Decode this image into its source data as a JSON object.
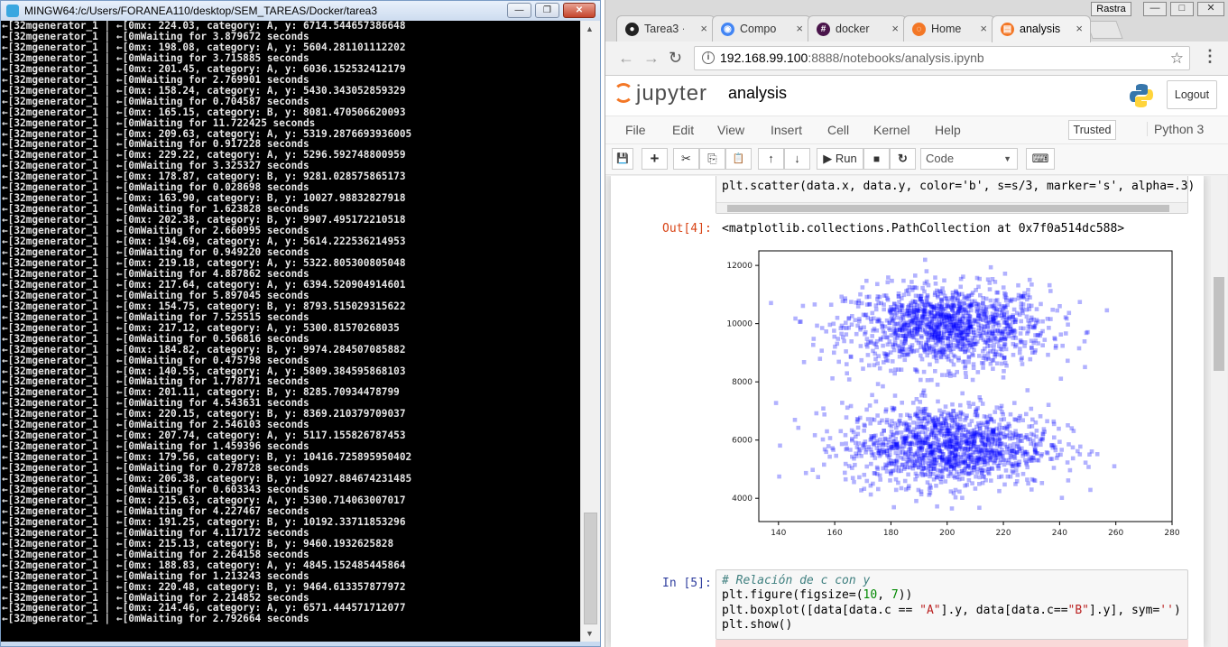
{
  "terminal": {
    "title": "MINGW64:/c/Users/FORANEA110/desktop/SEM_TAREAS/Docker/tarea3",
    "minimize_label": "—",
    "maximize_label": "❐",
    "close_label": "✕",
    "lines": [
      "←[32mgenerator_1 | ←[0mx: 224.03, category: A, y: 6714.544657386648",
      "←[32mgenerator_1 | ←[0mWaiting for 3.879672 seconds",
      "←[32mgenerator_1 | ←[0mx: 198.08, category: A, y: 5604.281101112202",
      "←[32mgenerator_1 | ←[0mWaiting for 3.715885 seconds",
      "←[32mgenerator_1 | ←[0mx: 201.45, category: A, y: 6036.152532412179",
      "←[32mgenerator_1 | ←[0mWaiting for 2.769901 seconds",
      "←[32mgenerator_1 | ←[0mx: 158.24, category: A, y: 5430.343052859329",
      "←[32mgenerator_1 | ←[0mWaiting for 0.704587 seconds",
      "←[32mgenerator_1 | ←[0mx: 165.15, category: B, y: 8081.470506620093",
      "←[32mgenerator_1 | ←[0mWaiting for 11.722425 seconds",
      "←[32mgenerator_1 | ←[0mx: 209.63, category: A, y: 5319.2876693936005",
      "←[32mgenerator_1 | ←[0mWaiting for 0.917228 seconds",
      "←[32mgenerator_1 | ←[0mx: 229.22, category: A, y: 5296.592748800959",
      "←[32mgenerator_1 | ←[0mWaiting for 3.325327 seconds",
      "←[32mgenerator_1 | ←[0mx: 178.87, category: B, y: 9281.028575865173",
      "←[32mgenerator_1 | ←[0mWaiting for 0.028698 seconds",
      "←[32mgenerator_1 | ←[0mx: 163.90, category: B, y: 10027.98832827918",
      "←[32mgenerator_1 | ←[0mWaiting for 1.623828 seconds",
      "←[32mgenerator_1 | ←[0mx: 202.38, category: B, y: 9907.495172210518",
      "←[32mgenerator_1 | ←[0mWaiting for 2.660995 seconds",
      "←[32mgenerator_1 | ←[0mx: 194.69, category: A, y: 5614.222536214953",
      "←[32mgenerator_1 | ←[0mWaiting for 0.949220 seconds",
      "←[32mgenerator_1 | ←[0mx: 219.18, category: A, y: 5322.805300805048",
      "←[32mgenerator_1 | ←[0mWaiting for 4.887862 seconds",
      "←[32mgenerator_1 | ←[0mx: 217.64, category: A, y: 6394.520904914601",
      "←[32mgenerator_1 | ←[0mWaiting for 5.897045 seconds",
      "←[32mgenerator_1 | ←[0mx: 154.75, category: B, y: 8793.515029315622",
      "←[32mgenerator_1 | ←[0mWaiting for 7.525515 seconds",
      "←[32mgenerator_1 | ←[0mx: 217.12, category: A, y: 5300.81570268035",
      "←[32mgenerator_1 | ←[0mWaiting for 0.506816 seconds",
      "←[32mgenerator_1 | ←[0mx: 184.82, category: B, y: 9974.284507085882",
      "←[32mgenerator_1 | ←[0mWaiting for 0.475798 seconds",
      "←[32mgenerator_1 | ←[0mx: 140.55, category: A, y: 5809.384595868103",
      "←[32mgenerator_1 | ←[0mWaiting for 1.778771 seconds",
      "←[32mgenerator_1 | ←[0mx: 201.11, category: B, y: 8285.70934478799",
      "←[32mgenerator_1 | ←[0mWaiting for 4.543631 seconds",
      "←[32mgenerator_1 | ←[0mx: 220.15, category: B, y: 8369.210379709037",
      "←[32mgenerator_1 | ←[0mWaiting for 2.546103 seconds",
      "←[32mgenerator_1 | ←[0mx: 207.74, category: A, y: 5117.155826787453",
      "←[32mgenerator_1 | ←[0mWaiting for 1.459396 seconds",
      "←[32mgenerator_1 | ←[0mx: 179.56, category: B, y: 10416.725895950402",
      "←[32mgenerator_1 | ←[0mWaiting for 0.278728 seconds",
      "←[32mgenerator_1 | ←[0mx: 206.38, category: B, y: 10927.884674231485",
      "←[32mgenerator_1 | ←[0mWaiting for 0.603343 seconds",
      "←[32mgenerator_1 | ←[0mx: 215.63, category: A, y: 5300.714063007017",
      "←[32mgenerator_1 | ←[0mWaiting for 4.227467 seconds",
      "←[32mgenerator_1 | ←[0mx: 191.25, category: B, y: 10192.33711853296",
      "←[32mgenerator_1 | ←[0mWaiting for 4.117172 seconds",
      "←[32mgenerator_1 | ←[0mx: 215.13, category: B, y: 9460.1932625828",
      "←[32mgenerator_1 | ←[0mWaiting for 2.264158 seconds",
      "←[32mgenerator_1 | ←[0mx: 188.83, category: A, y: 4845.152485445864",
      "←[32mgenerator_1 | ←[0mWaiting for 1.213243 seconds",
      "←[32mgenerator_1 | ←[0mx: 220.48, category: B, y: 9464.613357877972",
      "←[32mgenerator_1 | ←[0mWaiting for 2.214852 seconds",
      "←[32mgenerator_1 | ←[0mx: 214.46, category: A, y: 6571.444571712077",
      "←[32mgenerator_1 | ←[0mWaiting for 2.792664 seconds"
    ]
  },
  "browser": {
    "restore_label": "Rastra",
    "min_label": "—",
    "max_label": "□",
    "close_label": "✕",
    "tabs": [
      {
        "label": "Tarea3 ·",
        "icon": "github-icon",
        "close": "×",
        "fav": "●",
        "color": "#222222"
      },
      {
        "label": "Compo",
        "icon": "chrome-icon",
        "close": "×",
        "fav": "◉",
        "color": "#4285f4"
      },
      {
        "label": "docker",
        "icon": "hash-icon",
        "close": "×",
        "fav": "#",
        "color": "#4a154b"
      },
      {
        "label": "Home",
        "icon": "jupyter-icon",
        "close": "×",
        "fav": "◌",
        "color": "#f37726"
      },
      {
        "label": "analysis",
        "icon": "notebook-icon",
        "close": "×",
        "fav": "▤",
        "color": "#f37726"
      }
    ],
    "url_host": "192.168.99.100",
    "url_path": ":8888/notebooks/analysis.ipynb",
    "back_glyph": "←",
    "fwd_glyph": "→",
    "reload_glyph": "↻",
    "info_glyph": "i",
    "star_glyph": "☆",
    "menu_glyph": "⋮"
  },
  "jupyter": {
    "logo_text": "jupyter",
    "notebook_name": "analysis",
    "logout_label": "Logout",
    "menu": [
      "File",
      "Edit",
      "View",
      "Insert",
      "Cell",
      "Kernel",
      "Help"
    ],
    "trusted_label": "Trusted",
    "kernel_name": "Python 3",
    "toolbar": {
      "save": "💾",
      "add": "+",
      "cut": "✂",
      "copy": "⎘",
      "paste": "📋",
      "up": "↑",
      "down": "↓",
      "run": "▶ Run",
      "stop": "■",
      "restart": "↻",
      "cell_type": "Code",
      "cell_type_caret": "▼",
      "keyboard": "⌨"
    }
  },
  "cells": {
    "cell4_code": "plt.scatter(data.x, data.y, color='b', s=s/3, marker='s', alpha=.3)",
    "out4_prompt": "Out[4]:",
    "out4_text": "<matplotlib.collections.PathCollection at 0x7f0a514dc588>",
    "in5_prompt": "In [5]:",
    "in5_line1": "# Relación de c con y",
    "in5_line2_a": "plt.figure(figsize=(",
    "in5_line2_n1": "10",
    "in5_line2_b": ", ",
    "in5_line2_n2": "7",
    "in5_line2_c": "))",
    "in5_line3_a": "plt.boxplot([data[data.c == ",
    "in5_line3_s1": "\"A\"",
    "in5_line3_b": "].y, data[data.c==",
    "in5_line3_s2": "\"B\"",
    "in5_line3_c": "].y], sym=",
    "in5_line3_s3": "''",
    "in5_line3_d": ")",
    "in5_line4": "plt.show()"
  },
  "chart_data": {
    "type": "scatter",
    "marker": "square",
    "color": "#0000ff",
    "alpha": 0.3,
    "xlim": [
      133,
      280
    ],
    "ylim": [
      3200,
      12500
    ],
    "xticks": [
      140,
      160,
      180,
      200,
      220,
      240,
      260,
      280
    ],
    "yticks": [
      4000,
      6000,
      8000,
      10000,
      12000
    ],
    "series": [
      {
        "cluster": "B",
        "x_center": 200,
        "x_sd": 18,
        "y_center": 9900,
        "y_sd": 700,
        "count": 1300
      },
      {
        "cluster": "A",
        "x_center": 200,
        "x_sd": 18,
        "y_center": 5800,
        "y_sd": 700,
        "count": 1300
      }
    ],
    "points_from_terminal": [
      [
        224.03,
        6714.54
      ],
      [
        198.08,
        5604.28
      ],
      [
        201.45,
        6036.15
      ],
      [
        158.24,
        5430.34
      ],
      [
        165.15,
        8081.47
      ],
      [
        209.63,
        5319.29
      ],
      [
        229.22,
        5296.59
      ],
      [
        178.87,
        9281.03
      ],
      [
        163.9,
        10027.99
      ],
      [
        202.38,
        9907.5
      ],
      [
        194.69,
        5614.22
      ],
      [
        219.18,
        5322.81
      ],
      [
        217.64,
        6394.52
      ],
      [
        154.75,
        8793.52
      ],
      [
        217.12,
        5300.82
      ],
      [
        184.82,
        9974.28
      ],
      [
        140.55,
        5809.38
      ],
      [
        201.11,
        8285.71
      ],
      [
        220.15,
        8369.21
      ],
      [
        207.74,
        5117.16
      ],
      [
        179.56,
        10416.73
      ],
      [
        206.38,
        10927.88
      ],
      [
        215.63,
        5300.71
      ],
      [
        191.25,
        10192.34
      ],
      [
        215.13,
        9460.19
      ],
      [
        188.83,
        4845.15
      ],
      [
        220.48,
        9464.61
      ],
      [
        214.46,
        6571.44
      ]
    ]
  }
}
